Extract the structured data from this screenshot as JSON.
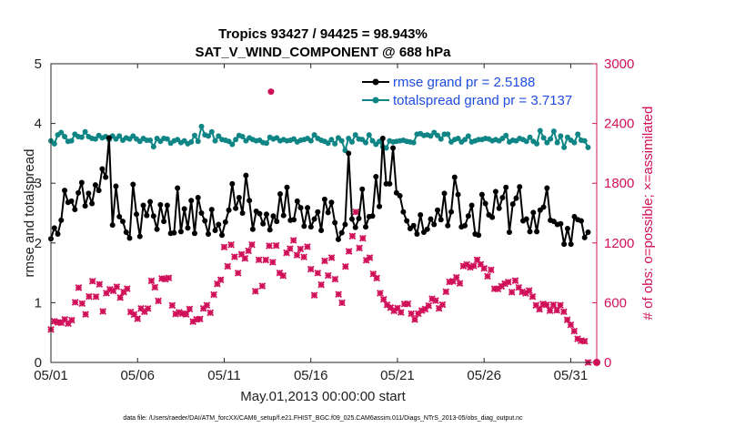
{
  "chart_data": {
    "type": "line",
    "title_line1": "Tropics 93427 / 94425 = 98.943%",
    "title_line2": "SAT_V_WIND_COMPONENT @ 688 hPa",
    "xlabel": "May.01,2013 00:00:00 start",
    "ylabel_left": "rmse and totalspread",
    "ylabel_right": "# of obs: o=possible; ×=assimilated",
    "footer": "data file: /Users/raeder/DAI/ATM_forcXX/CAM6_setup/f.e21.FHIST_BGC.f09_025.CAM6assim.011/Diags_NTrS_2013-05/obs_diag_output.nc",
    "x_ticks": [
      "05/01",
      "05/06",
      "05/11",
      "05/16",
      "05/21",
      "05/26",
      "05/31"
    ],
    "x_tick_days": [
      0,
      5,
      10,
      15,
      20,
      25,
      30
    ],
    "xlim_days": [
      0,
      31.5
    ],
    "ylim_left": [
      0,
      5
    ],
    "y_ticks_left": [
      "0",
      "1",
      "2",
      "3",
      "4",
      "5"
    ],
    "ylim_right": [
      0,
      3000
    ],
    "y_ticks_right": [
      "0",
      "600",
      "1200",
      "1800",
      "2400",
      "3000"
    ],
    "series": [
      {
        "name": "rmse grand pr = 2.5188",
        "color": "#000000",
        "marker": "circle",
        "values": [
          2.07,
          2.25,
          2.15,
          2.38,
          2.88,
          2.68,
          2.7,
          2.56,
          2.84,
          3.01,
          2.62,
          2.83,
          2.66,
          2.97,
          2.88,
          3.24,
          3.1,
          3.76,
          2.3,
          2.95,
          2.44,
          2.36,
          2.18,
          2.08,
          2.98,
          2.48,
          2.11,
          2.63,
          2.46,
          2.69,
          2.45,
          2.23,
          2.64,
          2.36,
          2.63,
          2.16,
          2.17,
          2.92,
          2.19,
          2.57,
          2.25,
          2.71,
          2.16,
          2.76,
          2.5,
          2.37,
          2.15,
          2.56,
          2.21,
          2.31,
          2.13,
          2.35,
          2.55,
          2.99,
          2.58,
          2.76,
          2.5,
          3.13,
          2.71,
          2.23,
          2.53,
          2.49,
          2.32,
          2.48,
          2.22,
          2.45,
          2.36,
          2.82,
          2.46,
          2.93,
          2.38,
          2.39,
          2.7,
          2.59,
          2.28,
          2.59,
          2.27,
          2.4,
          2.52,
          2.21,
          2.73,
          2.51,
          2.68,
          2.34,
          2.06,
          2.17,
          2.31,
          3.5,
          2.4,
          2.26,
          2.41,
          2.9,
          2.27,
          2.44,
          2.45,
          3.11,
          2.61,
          3.75,
          2.99,
          2.99,
          3.59,
          2.84,
          2.79,
          2.52,
          2.37,
          2.24,
          2.29,
          2.15,
          2.47,
          2.18,
          2.23,
          2.4,
          2.31,
          2.55,
          2.39,
          2.83,
          2.29,
          2.52,
          3.1,
          2.81,
          2.27,
          2.29,
          2.45,
          2.63,
          2.15,
          2.13,
          2.81,
          2.66,
          2.47,
          2.43,
          2.86,
          2.58,
          2.76,
          2.93,
          2.18,
          2.65,
          2.75,
          2.94,
          2.37,
          2.4,
          2.19,
          2.51,
          2.19,
          2.55,
          2.6,
          2.92,
          2.38,
          2.36,
          2.31,
          2.32,
          1.98,
          2.24,
          1.98,
          2.44,
          2.39,
          2.37,
          2.09,
          2.18
        ]
      },
      {
        "name": "totalspread grand pr = 3.7137",
        "color": "#0f8585",
        "marker": "circle",
        "values": [
          3.71,
          3.66,
          3.81,
          3.85,
          3.78,
          3.7,
          3.71,
          3.82,
          3.78,
          3.77,
          3.86,
          3.78,
          3.75,
          3.74,
          3.8,
          3.76,
          3.78,
          3.73,
          3.79,
          3.74,
          3.79,
          3.72,
          3.76,
          3.74,
          3.79,
          3.74,
          3.7,
          3.75,
          3.72,
          3.72,
          3.61,
          3.75,
          3.7,
          3.75,
          3.74,
          3.67,
          3.71,
          3.73,
          3.68,
          3.71,
          3.66,
          3.69,
          3.8,
          3.7,
          3.95,
          3.81,
          3.79,
          3.86,
          3.71,
          3.79,
          3.73,
          3.72,
          3.7,
          3.65,
          3.73,
          3.8,
          3.78,
          3.71,
          3.76,
          3.73,
          3.71,
          3.72,
          3.68,
          3.67,
          3.77,
          3.74,
          3.76,
          3.71,
          3.73,
          3.71,
          3.72,
          3.74,
          3.69,
          3.72,
          3.73,
          3.75,
          3.71,
          3.81,
          3.75,
          3.72,
          3.7,
          3.67,
          3.73,
          3.66,
          3.76,
          3.71,
          3.55,
          3.75,
          3.69,
          3.81,
          3.74,
          3.73,
          3.68,
          3.81,
          3.71,
          3.65,
          3.7,
          3.61,
          3.59,
          3.71,
          3.69,
          3.7,
          3.71,
          3.72,
          3.7,
          3.69,
          3.68,
          3.82,
          3.83,
          3.8,
          3.81,
          3.79,
          3.85,
          3.8,
          3.74,
          3.82,
          3.82,
          3.69,
          3.73,
          3.75,
          3.69,
          3.73,
          3.79,
          3.69,
          3.71,
          3.73,
          3.73,
          3.75,
          3.74,
          3.71,
          3.73,
          3.71,
          3.75,
          3.8,
          3.69,
          3.72,
          3.71,
          3.75,
          3.73,
          3.7,
          3.77,
          3.7,
          3.66,
          3.88,
          3.76,
          3.68,
          3.74,
          3.87,
          3.68,
          3.79,
          3.6,
          3.77,
          3.72,
          3.68,
          3.82,
          3.72,
          3.71,
          3.6
        ]
      }
    ],
    "obs_series": {
      "name": "assimilated",
      "color": "#d0115a",
      "marker": "x",
      "values": [
        331,
        413,
        402,
        399,
        432,
        391,
        425,
        604,
        751,
        592,
        483,
        662,
        816,
        660,
        785,
        513,
        696,
        734,
        719,
        760,
        651,
        707,
        740,
        507,
        482,
        439,
        542,
        509,
        541,
        819,
        755,
        618,
        843,
        836,
        849,
        573,
        487,
        503,
        491,
        483,
        537,
        410,
        433,
        436,
        542,
        574,
        499,
        681,
        789,
        830,
        1159,
        965,
        1182,
        1061,
        898,
        1086,
        1045,
        1121,
        1183,
        715,
        1031,
        768,
        1029,
        1171,
        1007,
        1174,
        899,
        871,
        1101,
        1143,
        1226,
        1078,
        1139,
        1059,
        1162,
        937,
        675,
        898,
        781,
        1020,
        873,
        1052,
        836,
        684,
        599,
        963,
        1116,
        1269,
        1511,
        1149,
        1247,
        1026,
        1052,
        889,
        847,
        696,
        634,
        578,
        551,
        518,
        546,
        503,
        587,
        589,
        490,
        431,
        490,
        521,
        536,
        570,
        639,
        621,
        543,
        580,
        710,
        809,
        815,
        854,
        794,
        968,
        984,
        956,
        970,
        1031,
        985,
        945,
        865,
        930,
        740,
        738,
        765,
        791,
        807,
        706,
        821,
        753,
        709,
        695,
        722,
        661,
        574,
        534,
        587,
        578,
        520,
        579,
        523,
        575,
        509,
        428,
        378,
        315,
        237,
        218,
        213,
        0
      ]
    },
    "obs_possible_outlier": {
      "day": 12.7,
      "value": 2720
    },
    "obs_possible_end": {
      "day": 31.5,
      "value": 0
    },
    "legend_position": "top-right",
    "grid": false
  }
}
